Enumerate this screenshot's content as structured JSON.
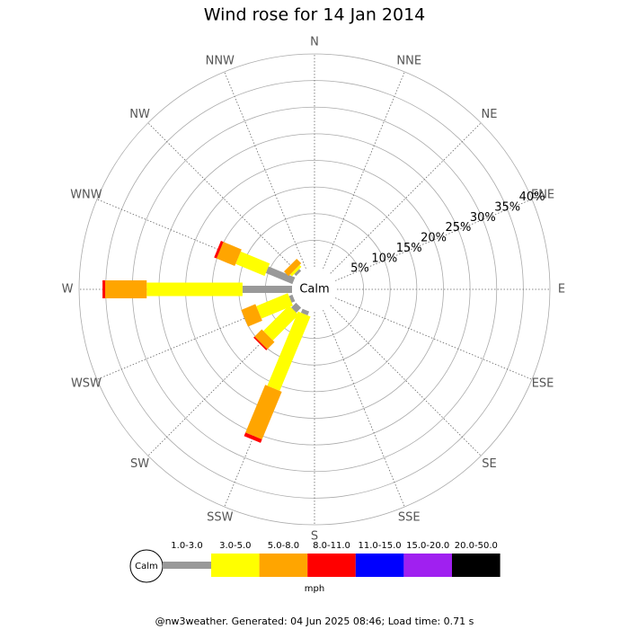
{
  "chart_data": {
    "type": "wind_rose",
    "title": "Wind rose for 14 Jan 2014",
    "directions": [
      "N",
      "NNE",
      "NE",
      "ENE",
      "E",
      "ESE",
      "SE",
      "SSE",
      "S",
      "SSW",
      "SW",
      "WSW",
      "W",
      "WNW",
      "NW",
      "NNW"
    ],
    "rlim": [
      0,
      40
    ],
    "rticks": [
      {
        "value": 5,
        "label": "5%"
      },
      {
        "value": 10,
        "label": "10%"
      },
      {
        "value": 15,
        "label": "15%"
      },
      {
        "value": 20,
        "label": "20%"
      },
      {
        "value": 25,
        "label": "25%"
      },
      {
        "value": 30,
        "label": "30%"
      },
      {
        "value": 35,
        "label": "35%"
      },
      {
        "value": 40,
        "label": "40%"
      }
    ],
    "calm_label": "Calm",
    "unit_label": "mph",
    "series": [
      {
        "name": "1.0-3.0",
        "color": "#999999",
        "values": [
          0,
          0,
          0,
          0,
          0,
          0,
          0,
          0,
          0,
          0.8,
          1.3,
          0.7,
          9.3,
          5.4,
          0.5,
          0
        ]
      },
      {
        "name": "3.0-5.0",
        "color": "#ffff00",
        "values": [
          0,
          0,
          0,
          0,
          0,
          0,
          0,
          0,
          0,
          15.1,
          6.8,
          6.4,
          18,
          5.9,
          0.5,
          0
        ]
      },
      {
        "name": "5.0-8.0",
        "color": "#ffa500",
        "values": [
          0,
          0,
          0,
          0,
          0,
          0,
          0,
          0,
          0,
          9.7,
          1.9,
          2.9,
          7.8,
          3.7,
          1.2,
          0
        ]
      },
      {
        "name": "8.0-11.0",
        "color": "#ff0000",
        "values": [
          0,
          0,
          0,
          0,
          0,
          0,
          0,
          0,
          0,
          0.7,
          0.3,
          0,
          0.5,
          0.5,
          0,
          0
        ]
      },
      {
        "name": "11.0-15.0",
        "color": "#0000ff",
        "values": [
          0,
          0,
          0,
          0,
          0,
          0,
          0,
          0,
          0,
          0,
          0,
          0,
          0,
          0,
          0,
          0
        ]
      },
      {
        "name": "15.0-20.0",
        "color": "#a020f0",
        "values": [
          0,
          0,
          0,
          0,
          0,
          0,
          0,
          0,
          0,
          0,
          0,
          0,
          0,
          0,
          0,
          0
        ]
      },
      {
        "name": "20.0-50.0",
        "color": "#000000",
        "values": [
          0,
          0,
          0,
          0,
          0,
          0,
          0,
          0,
          0,
          0,
          0,
          0,
          0,
          0,
          0,
          0
        ]
      }
    ],
    "footer": "@nw3weather. Generated: 04 Jun 2025 08:46; Load time: 0.71 s"
  }
}
